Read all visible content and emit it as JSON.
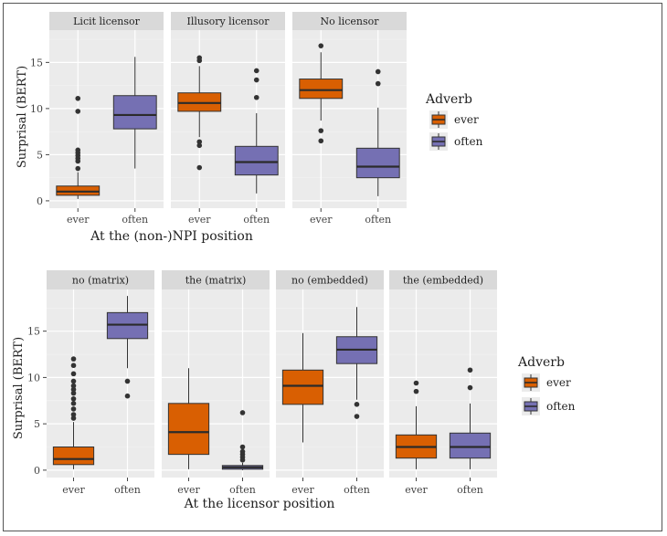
{
  "colors": {
    "ever": "#d95f02",
    "often": "#7570b3",
    "panel_bg": "#ebebeb",
    "strip_bg": "#d9d9d9",
    "grid_major": "#ffffff",
    "grid_minor": "#f4f4f4",
    "median": "#2b2b2b",
    "outlier": "#333333"
  },
  "chart_data": [
    {
      "type": "boxplot",
      "title": "",
      "xlabel": "At the (non-)NPI position",
      "ylabel": "Surprisal (BERT)",
      "ylim": [
        -0.8,
        18.5
      ],
      "yticks": [
        0,
        5,
        10,
        15
      ],
      "legend": {
        "title": "Adverb",
        "placement": "right",
        "entries": [
          "ever",
          "often"
        ]
      },
      "panels": [
        {
          "label": "Licit licensor",
          "boxes": [
            {
              "category": "ever",
              "min": 0.2,
              "q1": 0.6,
              "median": 1.0,
              "q3": 1.6,
              "max": 3.1,
              "outliers": [
                3.5,
                4.3,
                4.6,
                4.9,
                5.2,
                5.5,
                9.7,
                11.1
              ]
            },
            {
              "category": "often",
              "min": 3.5,
              "q1": 7.8,
              "median": 9.3,
              "q3": 11.4,
              "max": 15.6,
              "outliers": []
            }
          ]
        },
        {
          "label": "Illusory licensor",
          "boxes": [
            {
              "category": "ever",
              "min": 6.9,
              "q1": 9.7,
              "median": 10.6,
              "q3": 11.7,
              "max": 14.6,
              "outliers": [
                3.6,
                6.0,
                6.4,
                15.2,
                15.5
              ]
            },
            {
              "category": "often",
              "min": 0.8,
              "q1": 2.8,
              "median": 4.2,
              "q3": 5.9,
              "max": 9.5,
              "outliers": [
                11.2,
                13.1,
                14.1
              ]
            }
          ]
        },
        {
          "label": "No licensor",
          "boxes": [
            {
              "category": "ever",
              "min": 8.7,
              "q1": 11.1,
              "median": 12.0,
              "q3": 13.2,
              "max": 16.1,
              "outliers": [
                6.5,
                7.6,
                16.8
              ]
            },
            {
              "category": "often",
              "min": 0.5,
              "q1": 2.5,
              "median": 3.7,
              "q3": 5.7,
              "max": 10.1,
              "outliers": [
                12.7,
                14.0
              ]
            }
          ]
        }
      ]
    },
    {
      "type": "boxplot",
      "title": "",
      "xlabel": "At the licensor position",
      "ylabel": "Surprisal (BERT)",
      "ylim": [
        -0.8,
        19.5
      ],
      "yticks": [
        0,
        5,
        10,
        15
      ],
      "legend": {
        "title": "Adverb",
        "placement": "right",
        "entries": [
          "ever",
          "often"
        ]
      },
      "panels": [
        {
          "label": "no (matrix)",
          "boxes": [
            {
              "category": "ever",
              "min": 0.1,
              "q1": 0.6,
              "median": 1.2,
              "q3": 2.5,
              "max": 5.2,
              "outliers": [
                5.6,
                6.0,
                6.6,
                7.2,
                7.7,
                8.3,
                8.7,
                9.1,
                9.6,
                10.4,
                11.3,
                12.0
              ]
            },
            {
              "category": "often",
              "min": 11.0,
              "q1": 14.2,
              "median": 15.7,
              "q3": 17.0,
              "max": 18.8,
              "outliers": [
                8.0,
                9.6
              ]
            }
          ]
        },
        {
          "label": "the (matrix)",
          "boxes": [
            {
              "category": "ever",
              "min": 0.1,
              "q1": 1.7,
              "median": 4.1,
              "q3": 7.2,
              "max": 11.0,
              "outliers": []
            },
            {
              "category": "often",
              "min": 0.0,
              "q1": 0.1,
              "median": 0.3,
              "q3": 0.5,
              "max": 0.8,
              "outliers": [
                1.1,
                1.4,
                1.7,
                2.0,
                2.5,
                6.2
              ]
            }
          ]
        },
        {
          "label": "no (embedded)",
          "boxes": [
            {
              "category": "ever",
              "min": 3.0,
              "q1": 7.1,
              "median": 9.1,
              "q3": 10.8,
              "max": 14.8,
              "outliers": []
            },
            {
              "category": "often",
              "min": 7.6,
              "q1": 11.5,
              "median": 13.0,
              "q3": 14.4,
              "max": 17.6,
              "outliers": [
                5.8,
                7.1
              ]
            }
          ]
        },
        {
          "label": "the (embedded)",
          "boxes": [
            {
              "category": "ever",
              "min": 0.1,
              "q1": 1.3,
              "median": 2.5,
              "q3": 3.8,
              "max": 6.9,
              "outliers": [
                8.5,
                9.4
              ]
            },
            {
              "category": "often",
              "min": 0.1,
              "q1": 1.3,
              "median": 2.5,
              "q3": 4.0,
              "max": 7.2,
              "outliers": [
                8.9,
                10.8
              ]
            }
          ]
        }
      ]
    }
  ]
}
